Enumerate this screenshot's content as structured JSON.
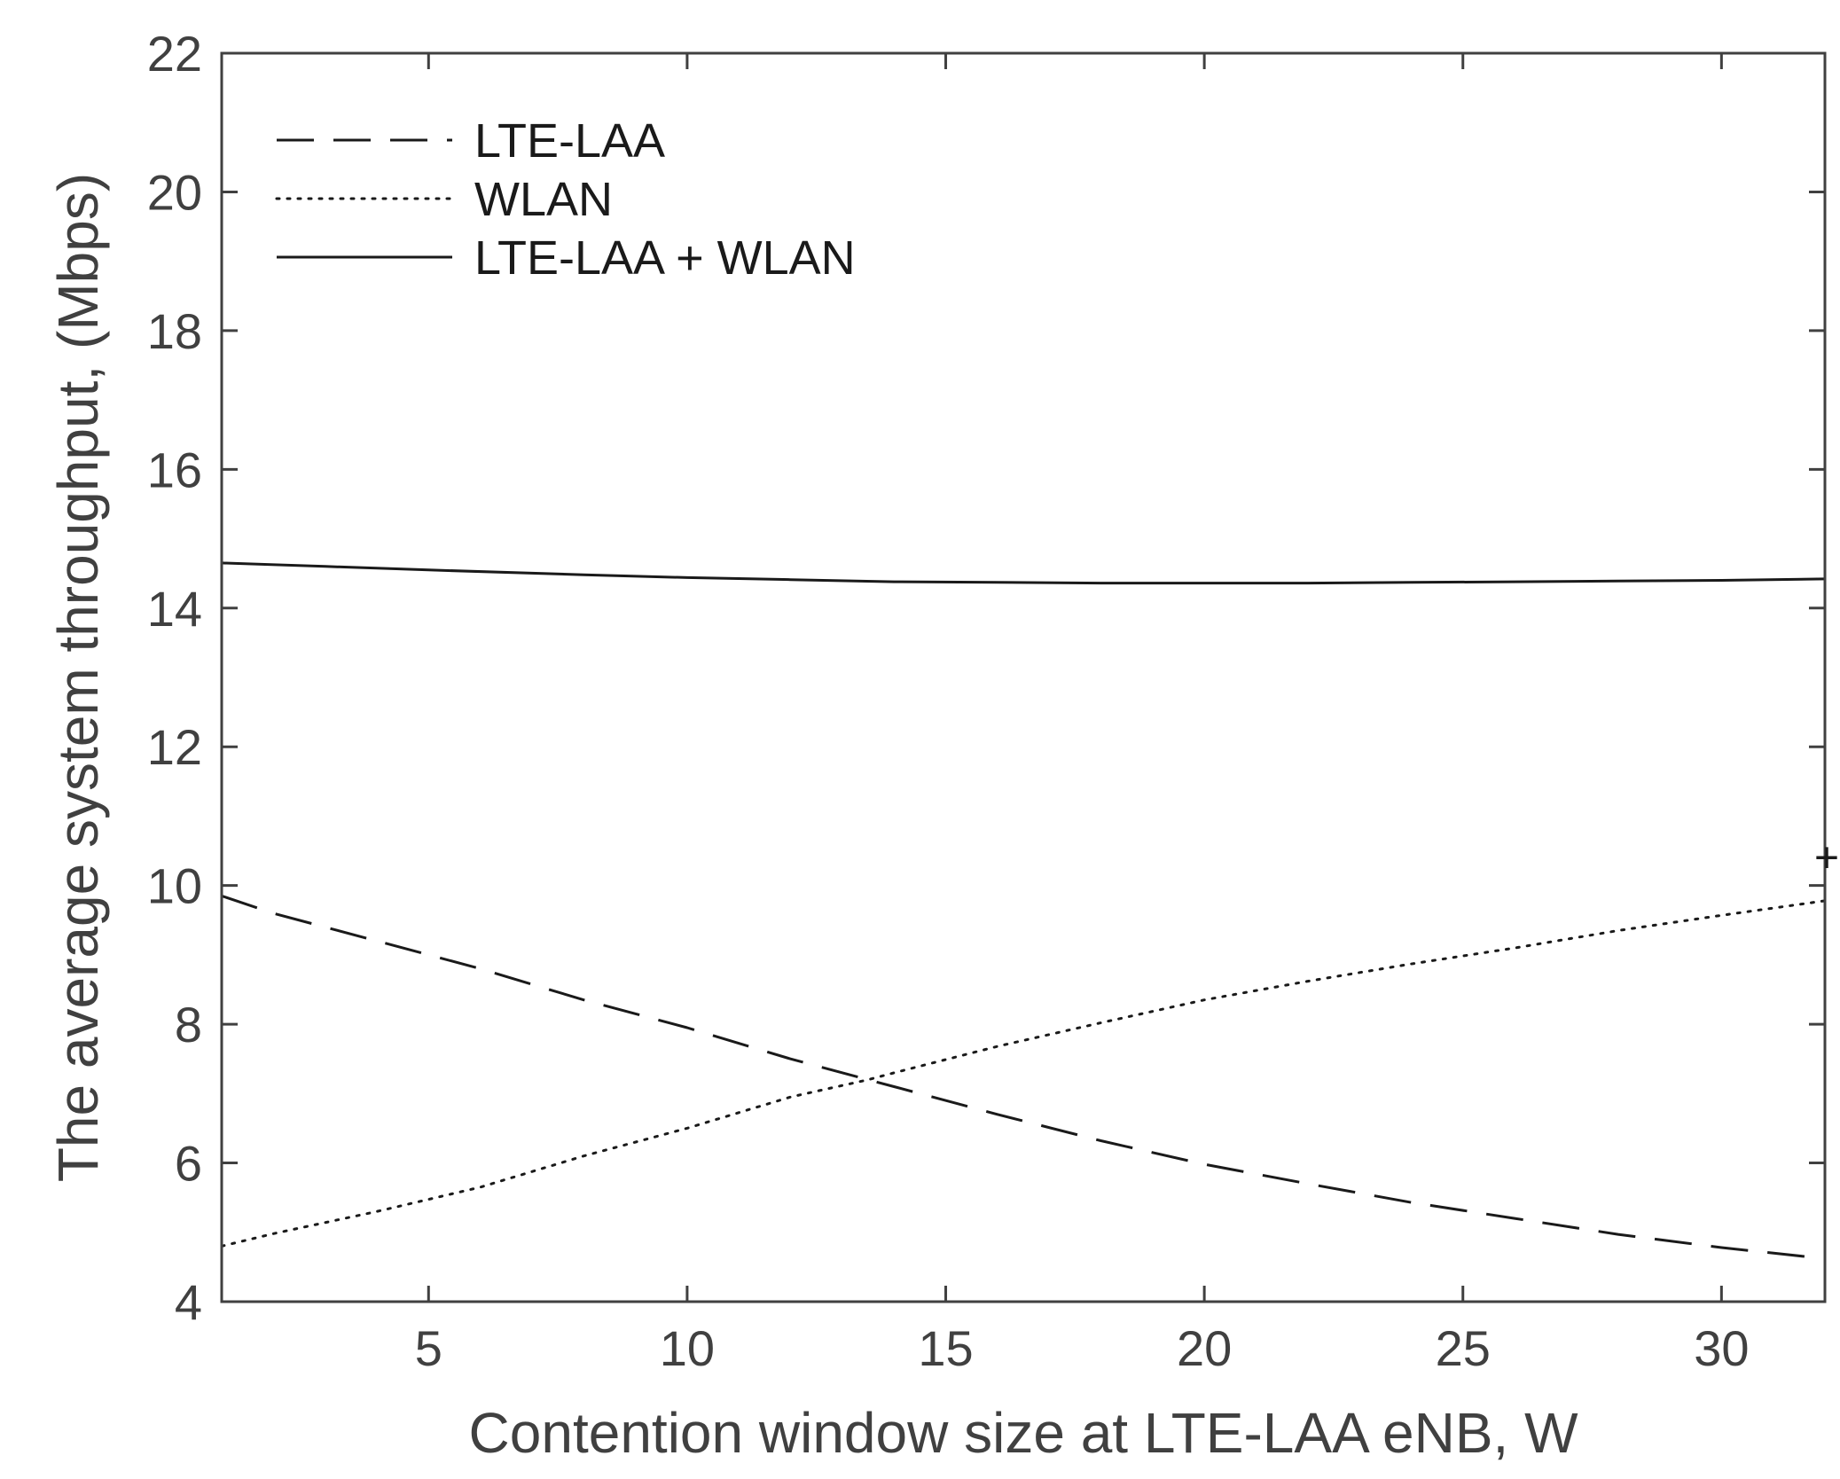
{
  "chart_data": {
    "type": "line",
    "title": "",
    "xlabel": "Contention window size at LTE-LAA eNB, W",
    "ylabel": "The average system throughput, (Mbps)",
    "xlim": [
      1,
      32
    ],
    "ylim": [
      4,
      22
    ],
    "xticks": [
      5,
      10,
      15,
      20,
      25,
      30
    ],
    "yticks": [
      4,
      6,
      8,
      10,
      12,
      14,
      16,
      18,
      20,
      22
    ],
    "legend_position": "top-left",
    "grid": false,
    "series": [
      {
        "name": "LTE-LAA",
        "style": "dashed",
        "color": "#1a1a1a",
        "x": [
          1,
          2,
          4,
          6,
          8,
          10,
          12,
          13.5,
          14,
          16,
          18,
          20,
          22,
          24,
          26,
          28,
          30,
          32
        ],
        "y": [
          9.85,
          9.6,
          9.2,
          8.8,
          8.35,
          7.95,
          7.5,
          7.2,
          7.1,
          6.7,
          6.32,
          5.98,
          5.7,
          5.43,
          5.2,
          4.97,
          4.78,
          4.62
        ]
      },
      {
        "name": "WLAN",
        "style": "dotted",
        "color": "#1a1a1a",
        "x": [
          1,
          2,
          4,
          6,
          8,
          10,
          12,
          13.5,
          14,
          16,
          18,
          20,
          22,
          24,
          26,
          28,
          30,
          32
        ],
        "y": [
          4.8,
          4.98,
          5.3,
          5.65,
          6.1,
          6.5,
          6.95,
          7.2,
          7.3,
          7.68,
          8.02,
          8.35,
          8.62,
          8.87,
          9.1,
          9.35,
          9.57,
          9.78
        ]
      },
      {
        "name": "LTE-LAA + WLAN",
        "style": "solid",
        "color": "#1a1a1a",
        "x": [
          1,
          3,
          5,
          8,
          10,
          12,
          14,
          16,
          18,
          20,
          22,
          24,
          26,
          28,
          30,
          32
        ],
        "y": [
          14.65,
          14.6,
          14.55,
          14.48,
          14.44,
          14.41,
          14.38,
          14.37,
          14.36,
          14.36,
          14.36,
          14.37,
          14.38,
          14.39,
          14.4,
          14.42
        ]
      }
    ],
    "annotations": [
      {
        "text": "+",
        "x": 32,
        "y": 10.4
      }
    ]
  }
}
